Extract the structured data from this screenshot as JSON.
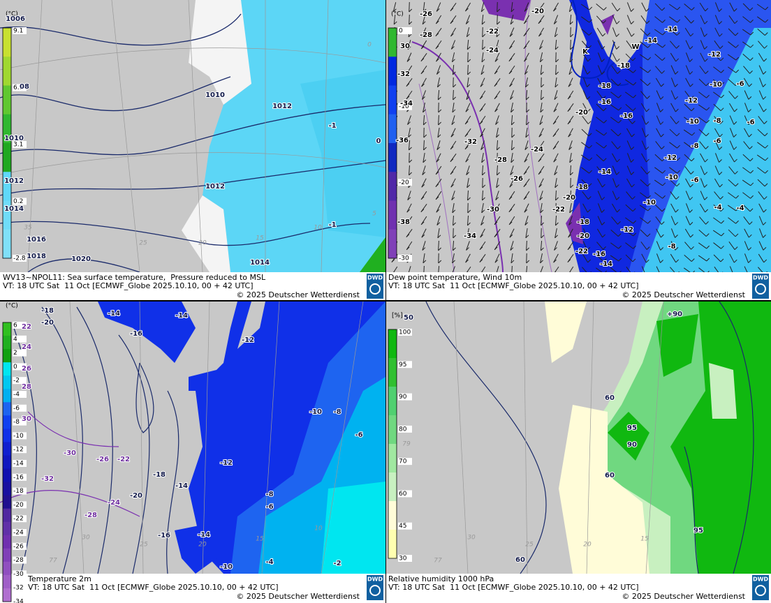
{
  "panels": [
    {
      "unit": "(°C)",
      "colorbar": [
        "9.1",
        "6.1",
        "3.1",
        "0.2",
        "-2.8"
      ],
      "labels": [
        "1006",
        "08",
        "1010",
        "1012",
        "1014",
        "1016",
        "1018",
        "1020",
        "1010",
        "1012",
        "1012",
        "1014",
        "-1",
        "0",
        "-1",
        "35",
        "25",
        "20",
        "15",
        "10",
        "5",
        "0"
      ],
      "caption": {
        "title": "WV13~NPOL11: Sea surface temperature,  Pressure reduced to MSL",
        "valid": "VT: 18 UTC Sat  11 Oct [ECMWF_Globe 2025.10.10, 00 + 42 UTC]",
        "copyright": "© 2025 Deutscher Wetterdienst"
      },
      "logo": "DWD"
    },
    {
      "unit": "(°C)",
      "colorbar": [
        "0",
        "-10",
        "-20",
        "-30"
      ],
      "labels": [
        "-26",
        "-28",
        "-22",
        "-24",
        "-20",
        "30",
        "-32",
        "-34",
        "-36",
        "-32",
        "-28",
        "-24",
        "-26",
        "-30",
        "-34",
        "-38",
        "-22",
        "-20",
        "-18",
        "-18",
        "-20",
        "-22",
        "-16",
        "-14",
        "-20",
        "-18",
        "-16",
        "-16",
        "-14",
        "-12",
        "-18",
        "-14",
        "-14",
        "-12",
        "-10",
        "-6",
        "-12",
        "-10",
        "-8",
        "-6",
        "-8",
        "-6",
        "-12",
        "-10",
        "-6",
        "-10",
        "-4",
        "-4",
        "-8",
        "K",
        "W"
      ],
      "caption": {
        "title": "Dew point temperature, Wind 10m",
        "valid": "VT: 18 UTC Sat  11 Oct [ECMWF_Globe 2025.10.10, 00 + 42 UTC]",
        "copyright": "© 2025 Deutscher Wetterdienst"
      },
      "logo": "DWD"
    },
    {
      "unit": "(°C)",
      "colorbar": [
        "6",
        "4",
        "2",
        "0",
        "-2",
        "-4",
        "-6",
        "-8",
        "-10",
        "-12",
        "-14",
        "-16",
        "-18",
        "-20",
        "-22",
        "-24",
        "-26",
        "-28",
        "-30",
        "-32",
        "-34"
      ],
      "labels": [
        "-18",
        "-20",
        "22",
        "24",
        "26",
        "28",
        "30",
        "-14",
        "-16",
        "-14",
        "-12",
        "-10",
        "-8",
        "-6",
        "-30",
        "-26",
        "-22",
        "-32",
        "-18",
        "-14",
        "-20",
        "-24",
        "-28",
        "-16",
        "-14",
        "-12",
        "-8",
        "-6",
        "-4",
        "-2",
        "-10",
        "30",
        "25",
        "20",
        "15",
        "10",
        "77"
      ],
      "caption": {
        "title": "Temperature 2m",
        "valid": "VT: 18 UTC Sat  11 Oct [ECMWF_Globe 2025.10.10, 00 + 42 UTC]",
        "copyright": "© 2025 Deutscher Wetterdienst"
      },
      "logo": "DWD"
    },
    {
      "unit": "[%]",
      "colorbar": [
        "100",
        "95",
        "90",
        "80",
        "70",
        "60",
        "45",
        "30"
      ],
      "labels": [
        "50",
        "+90",
        "60",
        "95",
        "90",
        "60",
        "95",
        "60",
        "30",
        "25",
        "20",
        "15",
        "77",
        "79"
      ],
      "caption": {
        "title": "Relative humidity 1000 hPa",
        "valid": "VT: 18 UTC Sat  11 Oct [ECMWF_Globe 2025.10.10, 00 + 42 UTC]",
        "copyright": "© 2025 Deutscher Wetterdienst"
      },
      "logo": "DWD"
    }
  ]
}
